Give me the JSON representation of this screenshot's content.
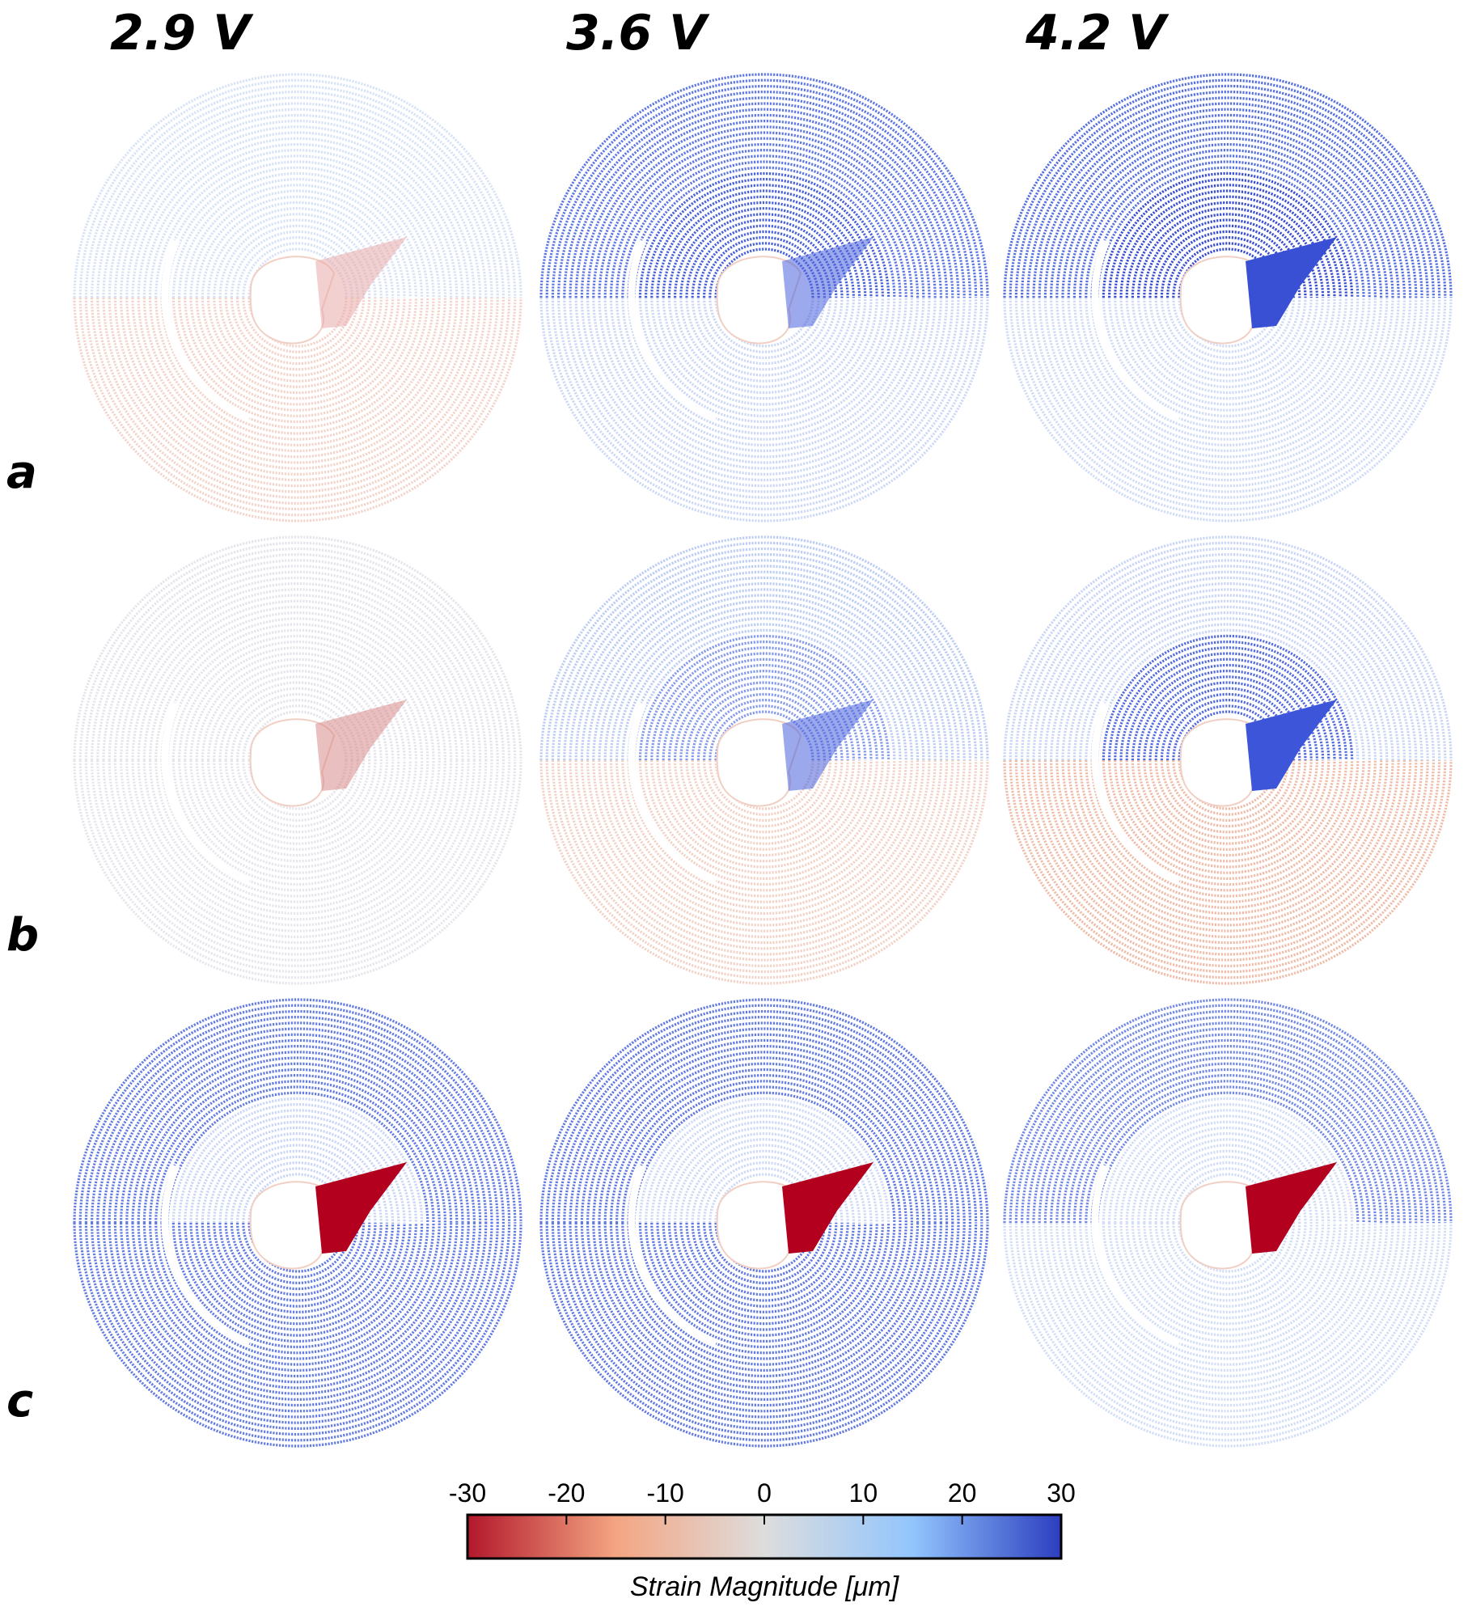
{
  "columns": [
    {
      "label": "2.9 V"
    },
    {
      "label": "3.6 V"
    },
    {
      "label": "4.2 V"
    }
  ],
  "rows": [
    {
      "label": "a"
    },
    {
      "label": "b"
    },
    {
      "label": "c"
    }
  ],
  "panels": [
    [
      {
        "base": "#d6e0f5",
        "lower": "#f2d2c8",
        "upper": null,
        "innerUpper": null,
        "wedge": "#e9a9a9",
        "wedgeStrong": false
      },
      {
        "base": "#6a83e6",
        "lower": "#c9d6f4",
        "upper": "#5670e0",
        "innerUpper": "#3f58d6",
        "wedge": "#4a62dd",
        "wedgeStrong": false
      },
      {
        "base": "#7c93ea",
        "lower": "#cdd9f5",
        "upper": "#4e68dc",
        "innerUpper": "#2f45cf",
        "wedge": "#3a50d4",
        "wedgeStrong": true
      }
    ],
    [
      {
        "base": "#e3e3ea",
        "lower": "#e6e4ea",
        "upper": null,
        "innerUpper": null,
        "wedge": "#d98a8a",
        "wedgeStrong": false
      },
      {
        "base": "#cfd9f3",
        "lower": "#f1d0c4",
        "upper": "#b9c9f2",
        "innerUpper": "#7f95ea",
        "wedge": "#4961dd",
        "wedgeStrong": false
      },
      {
        "base": "#f0c6b6",
        "lower": "#eeb8a4",
        "upper": "#c6d3f4",
        "innerUpper": "#4b63dc",
        "wedge": "#3d55d8",
        "wedgeStrong": true
      }
    ],
    [
      {
        "base": "#5068dc",
        "lower": "#5c74df",
        "upper": "#5c74df",
        "innerUpper": "#c7d4f5",
        "wedge": "#b3001e",
        "wedgeStrong": true
      },
      {
        "base": "#5a72de",
        "lower": "#5a72de",
        "upper": "#5a72de",
        "innerUpper": "#cbd7f5",
        "wedge": "#b3001e",
        "wedgeStrong": true
      },
      {
        "base": "#7088e4",
        "lower": "#d0dbf5",
        "upper": "#6a82e3",
        "innerUpper": "#cfdaf6",
        "wedge": "#b3001e",
        "wedgeStrong": true
      }
    ]
  ],
  "colorbar": {
    "title": "Strain Magnitude [μm]",
    "ticks": [
      "-30",
      "-20",
      "-10",
      "0",
      "10",
      "20",
      "30"
    ],
    "min": -30,
    "max": 30,
    "colors": [
      "#b2182b",
      "#f4a582",
      "#dddddd",
      "#92c5fd",
      "#2c3ebf"
    ]
  }
}
